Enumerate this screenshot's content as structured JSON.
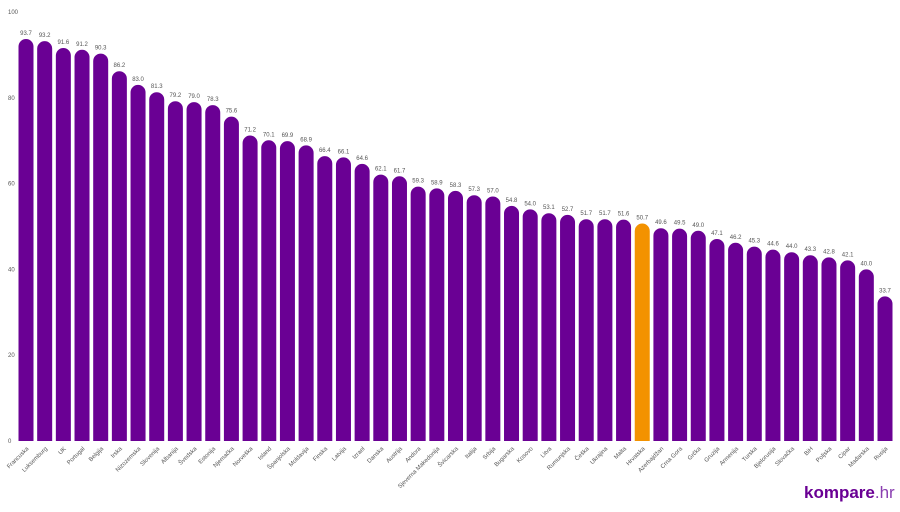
{
  "chart_data": {
    "type": "bar",
    "categories": [
      "Francuska",
      "Luksemburg",
      "UK",
      "Portugal",
      "Belgija",
      "Irska",
      "Nizozemska",
      "Slovenija",
      "Albanija",
      "Švedska",
      "Estonija",
      "Njemačka",
      "Norveška",
      "Island",
      "Španjolska",
      "Moldavija",
      "Finska",
      "Latvija",
      "Izrael",
      "Danska",
      "Austrija",
      "Andora",
      "Sjeverna Makedonija",
      "Švicarska",
      "Italija",
      "Srbija",
      "Bugarska",
      "Kosovo",
      "Litva",
      "Rumunjska",
      "Češka",
      "Ukrajina",
      "Malta",
      "Hrvatska",
      "Azerbajdžan",
      "Crna Gora",
      "Grčka",
      "Gruzija",
      "Armenija",
      "Turska",
      "Bjelorusija",
      "Slovačka",
      "BiH",
      "Poljska",
      "Cipar",
      "Mađarska",
      "Rusija"
    ],
    "values": [
      93.7,
      93.2,
      91.6,
      91.2,
      90.3,
      86.2,
      83.0,
      81.3,
      79.2,
      79.0,
      78.3,
      75.6,
      71.2,
      70.1,
      69.9,
      68.9,
      66.4,
      66.1,
      64.6,
      62.1,
      61.7,
      59.3,
      58.9,
      58.3,
      57.3,
      57.0,
      54.8,
      54.0,
      53.1,
      52.7,
      51.7,
      51.7,
      51.6,
      50.7,
      49.6,
      49.5,
      49.0,
      47.1,
      46.2,
      45.3,
      44.6,
      44.0,
      43.3,
      42.8,
      42.1,
      40.0,
      33.7
    ],
    "value_labels": [
      "93.7",
      "93.2",
      "91.6",
      "91.2",
      "90.3",
      "86.2",
      "83.0",
      "81.3",
      "79.2",
      "79.0",
      "78.3",
      "75.6",
      "71.2",
      "70.1",
      "69.9",
      "68.9",
      "66.4",
      "66.1",
      "64.6",
      "62.1",
      "61.7",
      "59.3",
      "58.9",
      "58.3",
      "57.3",
      "57.0",
      "54.8",
      "54.0",
      "53.1",
      "52.7",
      "51.7",
      "51.7",
      "51.6",
      "50.7",
      "49.6",
      "49.5",
      "49.0",
      "47.1",
      "46.2",
      "45.3",
      "44.6",
      "44.0",
      "43.3",
      "42.8",
      "42.1",
      "40.0",
      "33.7"
    ],
    "colors": [
      "#6a0094",
      "#6a0094",
      "#6a0094",
      "#6a0094",
      "#6a0094",
      "#6a0094",
      "#6a0094",
      "#6a0094",
      "#6a0094",
      "#6a0094",
      "#6a0094",
      "#6a0094",
      "#6a0094",
      "#6a0094",
      "#6a0094",
      "#6a0094",
      "#6a0094",
      "#6a0094",
      "#6a0094",
      "#6a0094",
      "#6a0094",
      "#6a0094",
      "#6a0094",
      "#6a0094",
      "#6a0094",
      "#6a0094",
      "#6a0094",
      "#6a0094",
      "#6a0094",
      "#6a0094",
      "#6a0094",
      "#6a0094",
      "#6a0094",
      "#f39200",
      "#6a0094",
      "#6a0094",
      "#6a0094",
      "#6a0094",
      "#6a0094",
      "#6a0094",
      "#6a0094",
      "#6a0094",
      "#6a0094",
      "#6a0094",
      "#6a0094",
      "#6a0094",
      "#6a0094"
    ],
    "ylim": [
      0,
      100
    ],
    "yticks": [
      0,
      20,
      40,
      60,
      80,
      100
    ],
    "grid": false
  },
  "logo": {
    "name": "kompare",
    "suffix": ".hr"
  }
}
